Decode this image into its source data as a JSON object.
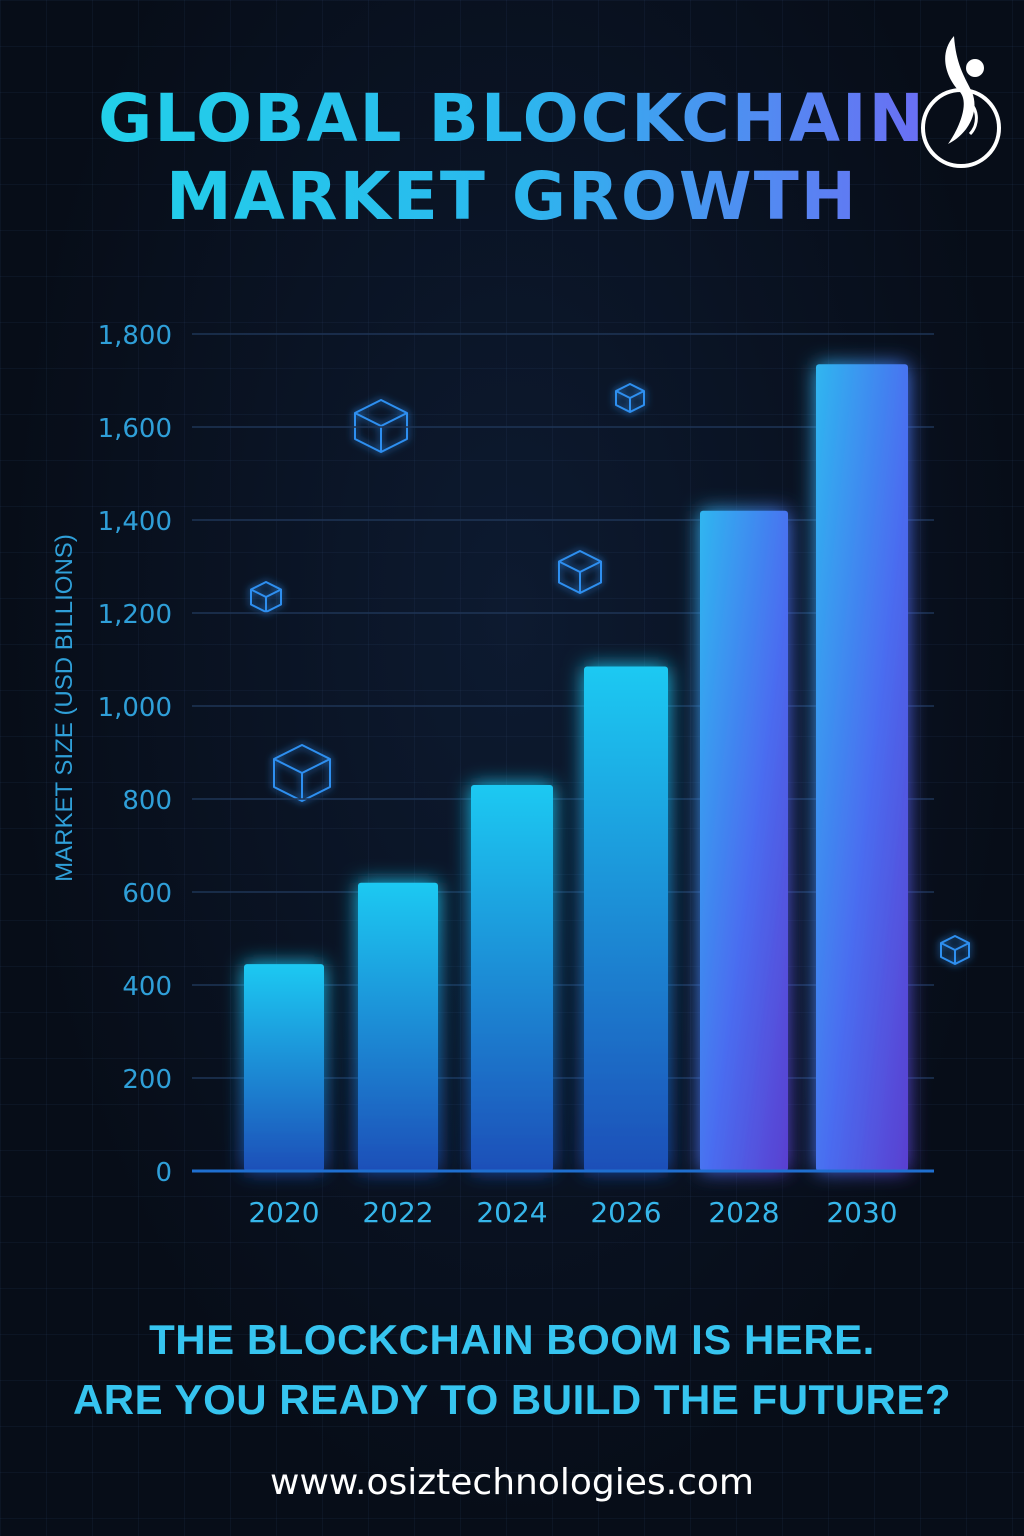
{
  "title": {
    "line1": "GLOBAL BLOCKCHAIN",
    "line2": "MARKET GROWTH"
  },
  "logo": {
    "icon": "osiz-logo-icon"
  },
  "chart_data": {
    "type": "bar",
    "ylabel": "MARKET SIZE (USD BILLIONS)",
    "xlabel": "",
    "categories": [
      "2020",
      "2022",
      "2024",
      "2026",
      "2028",
      "2030"
    ],
    "values": [
      445,
      620,
      830,
      1085,
      1420,
      1735
    ],
    "ylim": [
      0,
      1800
    ],
    "yticks": [
      0,
      200,
      400,
      600,
      800,
      1000,
      1200,
      1400,
      1600,
      1800
    ],
    "ytick_labels": [
      "0",
      "200",
      "400",
      "600",
      "800",
      "1,000",
      "1,200",
      "1,400",
      "1,600",
      "1,800"
    ],
    "grid": true,
    "legend": "none"
  },
  "decorations": [
    "cube-icon",
    "cube-icon",
    "cube-icon",
    "cube-icon",
    "cube-icon",
    "cube-icon"
  ],
  "tagline": {
    "line1": "THE BLOCKCHAIN BOOM IS HERE.",
    "line2": "ARE YOU READY TO BUILD THE FUTURE?"
  },
  "website": "www.osiztechnologies.com",
  "colors": {
    "background": "#070d18",
    "accent_cyan": "#36c4ef",
    "accent_purple": "#7a5cf5",
    "bar_top": "#1fc9f2",
    "bar_bottom": "#1d4fb8"
  }
}
